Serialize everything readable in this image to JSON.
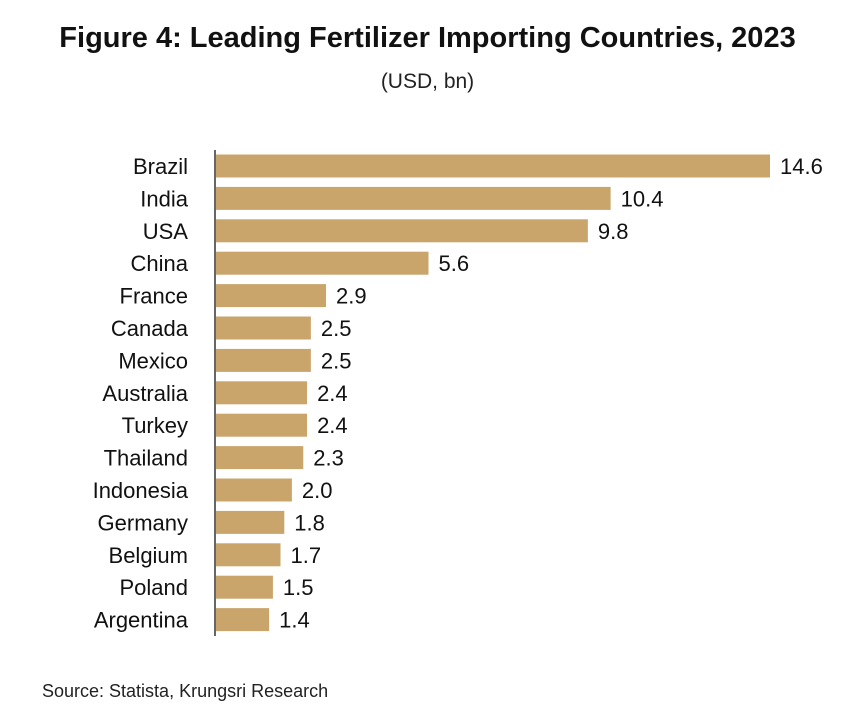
{
  "chart_data": {
    "type": "bar",
    "orientation": "horizontal",
    "title": "Figure 4: Leading Fertilizer Importing Countries, 2023",
    "subtitle": "(USD, bn)",
    "categories": [
      "Brazil",
      "India",
      "USA",
      "China",
      "France",
      "Canada",
      "Mexico",
      "Australia",
      "Turkey",
      "Thailand",
      "Indonesia",
      "Germany",
      "Belgium",
      "Poland",
      "Argentina"
    ],
    "values": [
      14.6,
      10.4,
      9.8,
      5.6,
      2.9,
      2.5,
      2.5,
      2.4,
      2.4,
      2.3,
      2.0,
      1.8,
      1.7,
      1.5,
      1.4
    ],
    "value_labels": [
      "14.6",
      "10.4",
      "9.8",
      "5.6",
      "2.9",
      "2.5",
      "2.5",
      "2.4",
      "2.4",
      "2.3",
      "2.0",
      "1.8",
      "1.7",
      "1.5",
      "1.4"
    ],
    "xlim": [
      0,
      14.6
    ],
    "bar_color": "#C9A56B",
    "grid": false,
    "source": "Source: Statista, Krungsri Research"
  }
}
